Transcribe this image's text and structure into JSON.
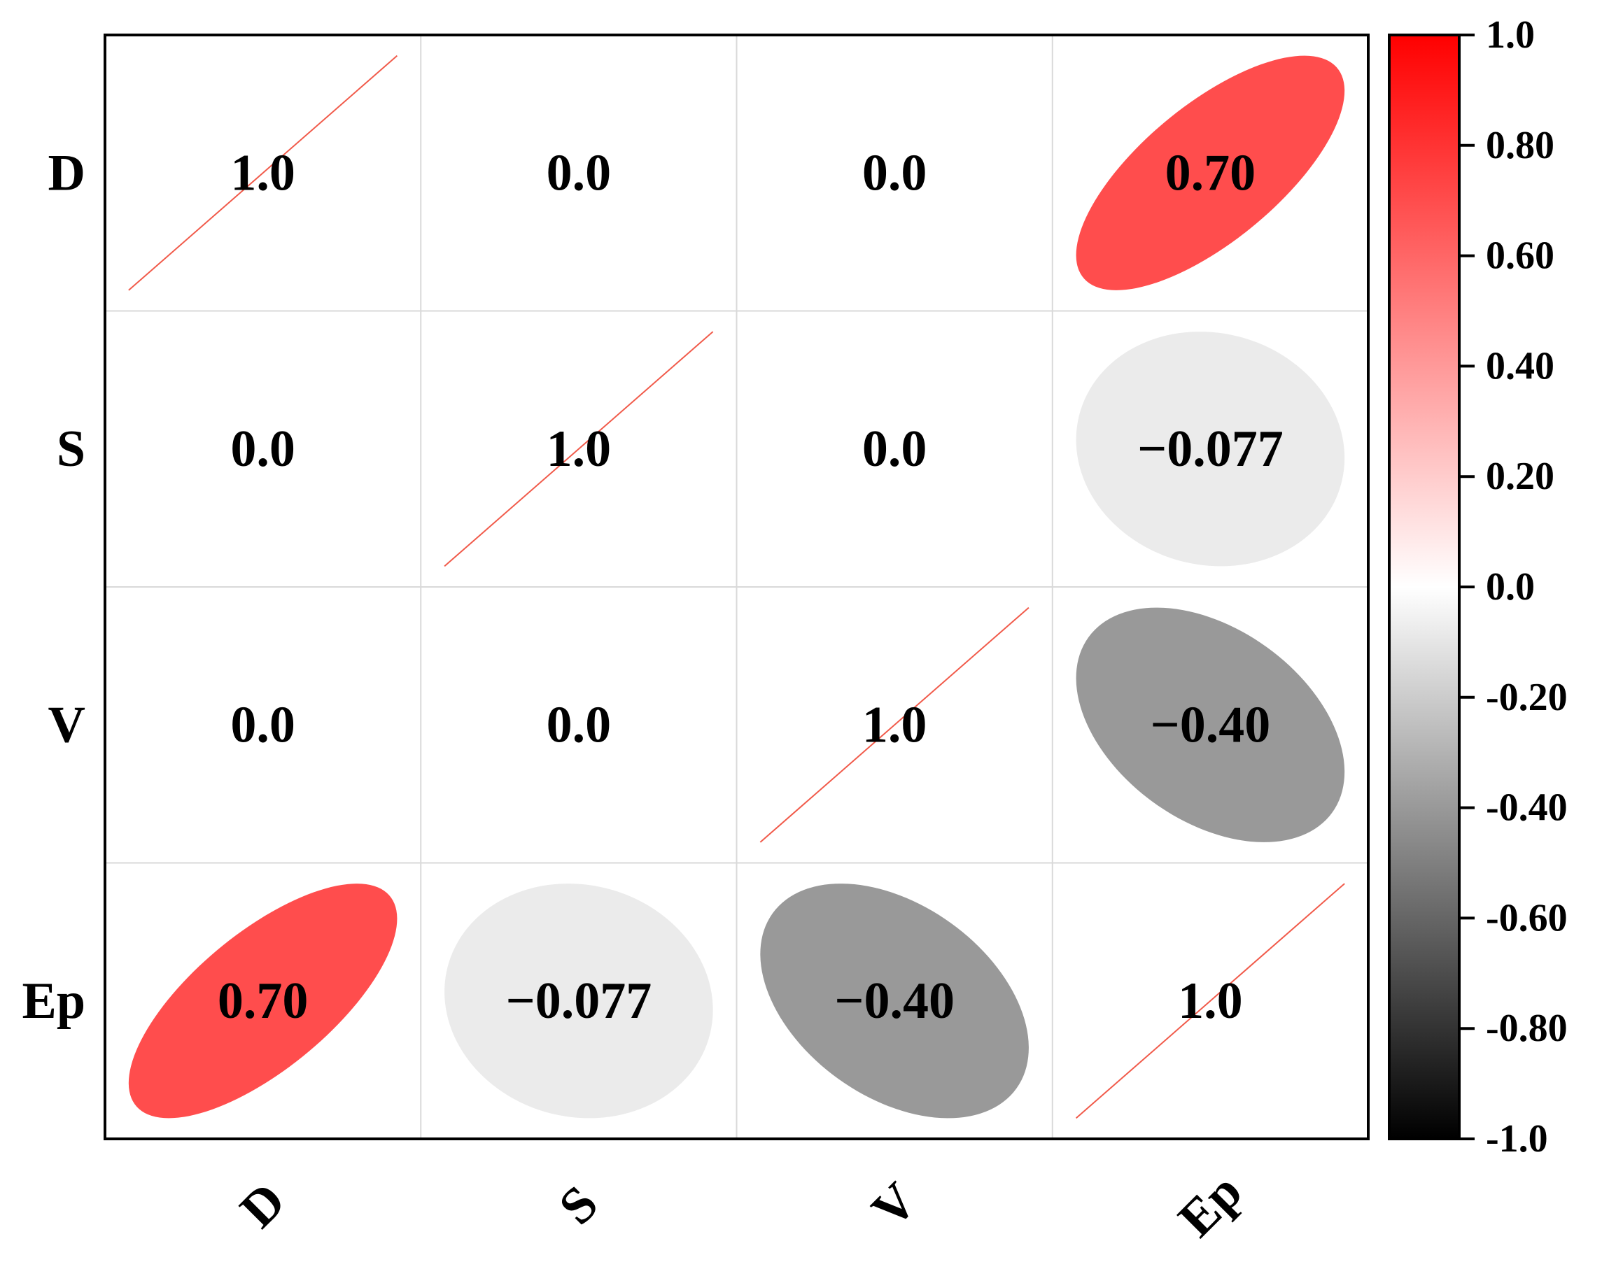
{
  "chart_data": {
    "type": "heatmap",
    "variables": [
      "D",
      "S",
      "V",
      "Ep"
    ],
    "matrix": [
      [
        1.0,
        0.0,
        0.0,
        0.7
      ],
      [
        0.0,
        1.0,
        0.0,
        -0.077
      ],
      [
        0.0,
        0.0,
        1.0,
        -0.4
      ],
      [
        0.7,
        -0.077,
        -0.4,
        1.0
      ]
    ],
    "cell_labels": [
      [
        "1.0",
        "0.0",
        "0.0",
        "0.70"
      ],
      [
        "0.0",
        "1.0",
        "0.0",
        "−0.077"
      ],
      [
        "0.0",
        "0.0",
        "1.0",
        "−0.40"
      ],
      [
        "0.70",
        "−0.077",
        "−0.40",
        "1.0"
      ]
    ],
    "colorbar": {
      "range": [
        -1.0,
        1.0
      ],
      "ticks": [
        1.0,
        0.8,
        0.6,
        0.4,
        0.2,
        0.0,
        -0.2,
        -0.4,
        -0.6,
        -0.8,
        -1.0
      ],
      "tick_labels": [
        "1.0",
        "0.80",
        "0.60",
        "0.40",
        "0.20",
        "0.0",
        "-0.20",
        "-0.40",
        "-0.60",
        "-0.80",
        "-1.0"
      ],
      "colors": {
        "negative": "#000000",
        "zero": "#ffffff",
        "positive": "#ff0000"
      }
    },
    "grid": true,
    "legend": "right"
  }
}
